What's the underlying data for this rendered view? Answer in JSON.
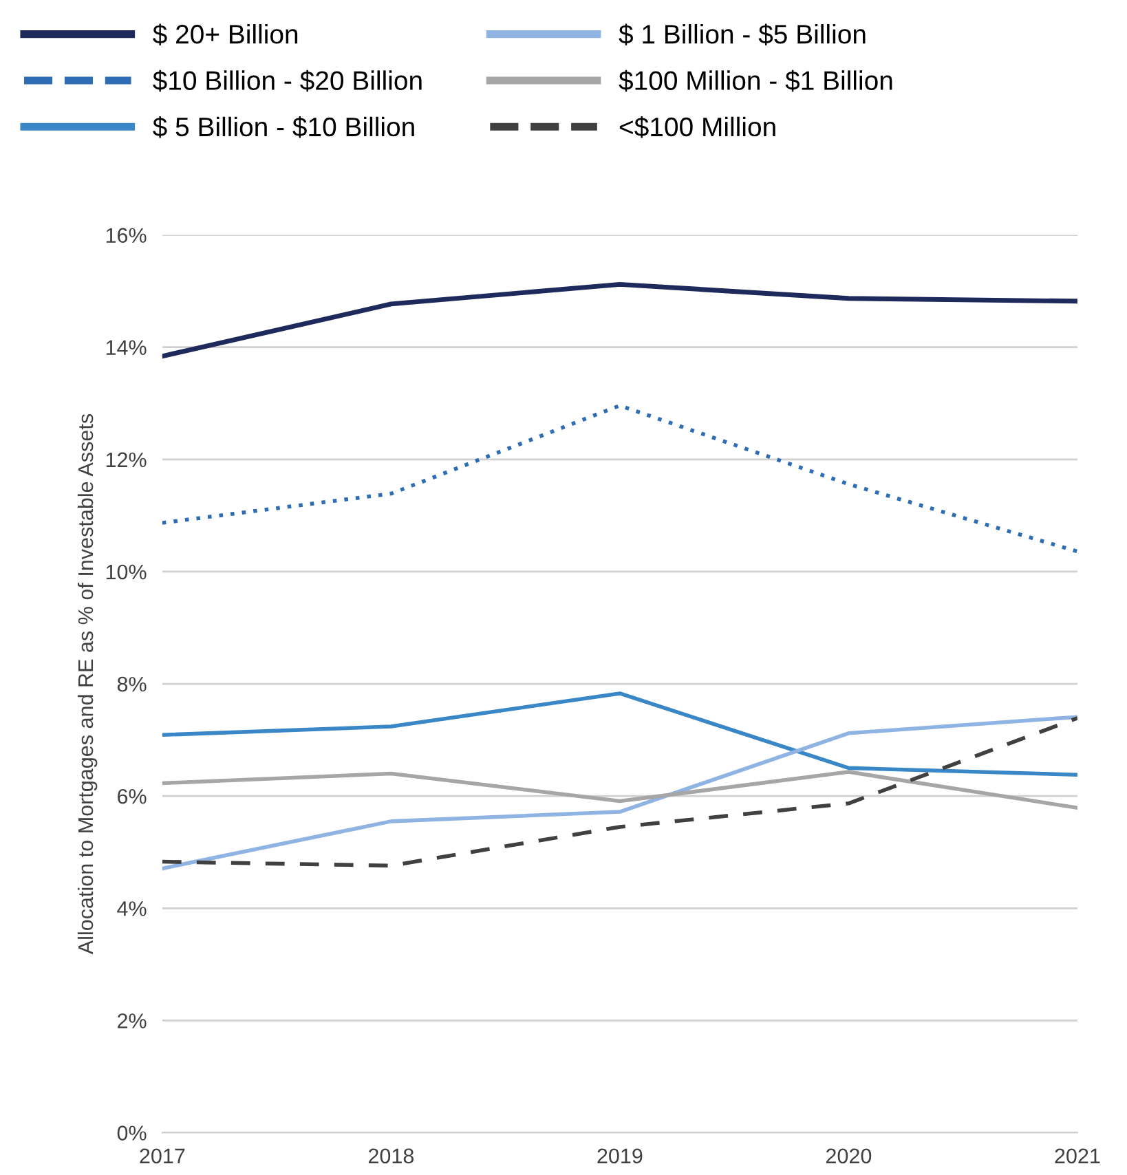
{
  "chart_data": {
    "type": "line",
    "ylabel": "Allocation to Mortgages and RE as % of Investable Assets",
    "categories": [
      "2017",
      "2018",
      "2019",
      "2020",
      "2021"
    ],
    "ylim": [
      0,
      16
    ],
    "yticks": [
      {
        "value": 0,
        "label": "0%"
      },
      {
        "value": 2,
        "label": "2%"
      },
      {
        "value": 4,
        "label": "4%"
      },
      {
        "value": 6,
        "label": "6%"
      },
      {
        "value": 8,
        "label": "8%"
      },
      {
        "value": 10,
        "label": "10%"
      },
      {
        "value": 12,
        "label": "12%"
      },
      {
        "value": 14,
        "label": "14%"
      },
      {
        "value": 16,
        "label": "16%"
      }
    ],
    "grid": "y",
    "legend": "top",
    "marker": "none",
    "series": [
      {
        "name": "$ 20+ Billion",
        "color": "#1f2a5c",
        "line_style": "solid",
        "values": [
          13.84,
          14.77,
          15.12,
          14.87,
          14.82
        ]
      },
      {
        "name": "$10 Billion - $20 Billion",
        "color": "#2e6db4",
        "line_style": "dotted",
        "values": [
          10.87,
          11.39,
          12.96,
          11.56,
          10.36
        ]
      },
      {
        "name": "$ 5 Billion - $10 Billion",
        "color": "#3a87c8",
        "line_style": "solid",
        "values": [
          7.09,
          7.24,
          7.83,
          6.5,
          6.38
        ]
      },
      {
        "name": "$ 1 Billion - $5 Billion",
        "color": "#8fb4e3",
        "line_style": "solid",
        "values": [
          4.71,
          5.55,
          5.72,
          7.12,
          7.41
        ]
      },
      {
        "name": "$100 Million - $1 Billion",
        "color": "#a6a6a6",
        "line_style": "solid",
        "values": [
          6.23,
          6.4,
          5.91,
          6.43,
          5.79
        ]
      },
      {
        "name": "<$100 Million",
        "color": "#404040",
        "line_style": "dashed",
        "values": [
          4.83,
          4.76,
          5.45,
          5.87,
          7.39
        ]
      }
    ]
  }
}
